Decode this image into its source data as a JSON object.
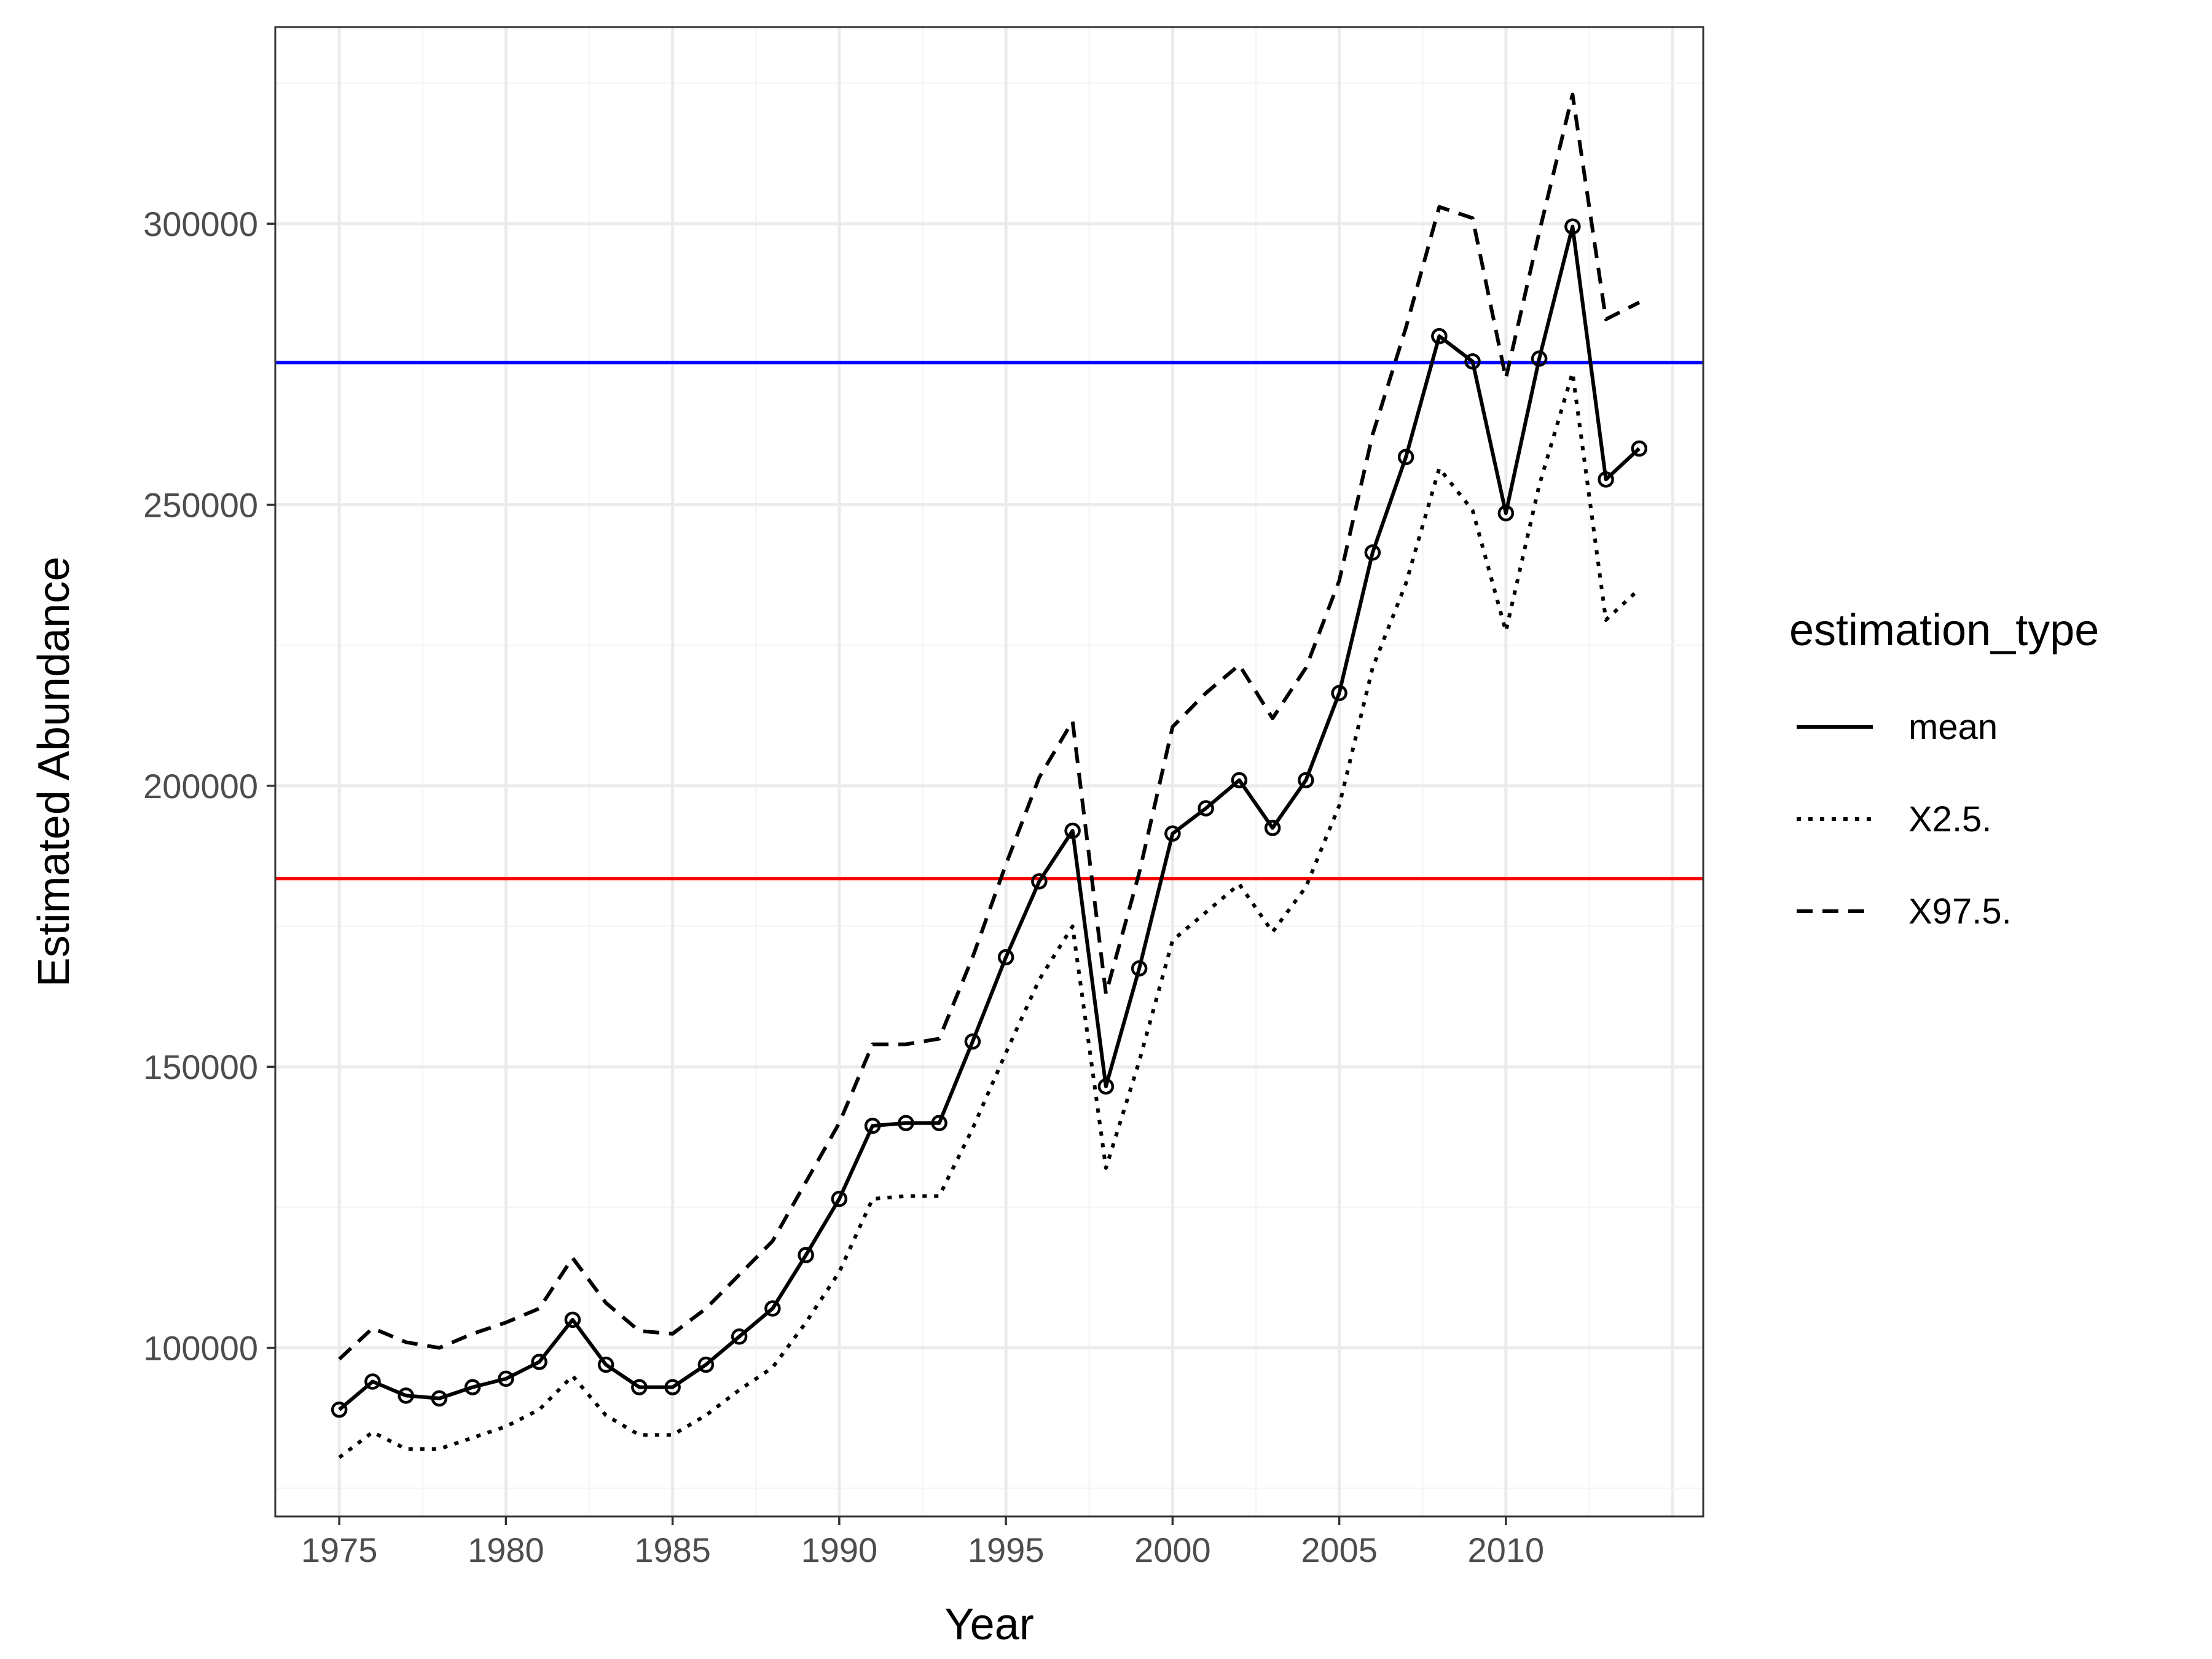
{
  "chart_data": {
    "type": "line",
    "xlabel": "Year",
    "ylabel": "Estimated Abundance",
    "xlim": [
      1973.08,
      2015.92
    ],
    "ylim": [
      70000,
      335000
    ],
    "x_ticks": [
      1975,
      1980,
      1985,
      1990,
      1995,
      2000,
      2005,
      2010
    ],
    "x_tick_labels": [
      "1975",
      "1980",
      "1985",
      "1990",
      "1995",
      "2000",
      "2005",
      "2010"
    ],
    "y_ticks": [
      100000,
      150000,
      200000,
      250000,
      300000
    ],
    "y_tick_labels": [
      "100000",
      "150000",
      "200000",
      "250000",
      "300000"
    ],
    "grid": true,
    "legend": {
      "title": "estimation_type",
      "position": "right",
      "entries": [
        {
          "label": "mean",
          "linetype": "solid"
        },
        {
          "label": "X2.5.",
          "linetype": "dotted"
        },
        {
          "label": "X97.5.",
          "linetype": "dashed"
        }
      ]
    },
    "x": [
      1975,
      1976,
      1977,
      1978,
      1979,
      1980,
      1981,
      1982,
      1983,
      1984,
      1985,
      1986,
      1987,
      1988,
      1989,
      1990,
      1991,
      1992,
      1993,
      1994,
      1995,
      1996,
      1997,
      1998,
      1999,
      2000,
      2001,
      2002,
      2003,
      2004,
      2005,
      2006,
      2007,
      2008,
      2009,
      2010,
      2011,
      2012,
      2013,
      2014
    ],
    "series": [
      {
        "name": "mean",
        "linetype": "solid",
        "points": true,
        "values": [
          89000,
          94000,
          91500,
          91000,
          93000,
          94500,
          97500,
          105000,
          97000,
          93000,
          93000,
          97000,
          102000,
          107000,
          116500,
          126500,
          139500,
          140000,
          140000,
          154500,
          169500,
          183000,
          192000,
          146500,
          167500,
          191500,
          196000,
          201000,
          192500,
          201000,
          216500,
          241500,
          258500,
          280000,
          275500,
          248500,
          276000,
          299500,
          254500,
          260000
        ]
      },
      {
        "name": "X2.5.",
        "linetype": "dotted",
        "points": false,
        "values": [
          80500,
          85000,
          82000,
          82000,
          84000,
          86000,
          89000,
          95000,
          88000,
          84500,
          84500,
          88000,
          92500,
          96500,
          104500,
          113500,
          126500,
          127000,
          127000,
          139000,
          152500,
          165500,
          175000,
          132000,
          151000,
          172500,
          177500,
          182500,
          174000,
          182000,
          196500,
          221000,
          236000,
          256500,
          249000,
          227500,
          253500,
          273500,
          229500,
          235000
        ]
      },
      {
        "name": "X97.5.",
        "linetype": "dashed",
        "points": false,
        "values": [
          98000,
          103500,
          101000,
          100000,
          102500,
          104500,
          107000,
          116000,
          108000,
          103000,
          102500,
          107000,
          113000,
          119000,
          129500,
          140000,
          154000,
          154000,
          155000,
          169500,
          186000,
          201500,
          211500,
          163000,
          184500,
          210500,
          216500,
          221500,
          212000,
          221000,
          236500,
          262500,
          281500,
          303000,
          301000,
          272500,
          298500,
          323000,
          283000,
          286000
        ]
      }
    ],
    "hlines": [
      {
        "y": 275300,
        "color": "#0000ff"
      },
      {
        "y": 183500,
        "color": "#ff0000"
      }
    ]
  },
  "colors": {
    "line": "#000000",
    "panel_border": "#333333",
    "grid_major": "#ebebeb",
    "grid_minor": "#f5f5f5"
  }
}
